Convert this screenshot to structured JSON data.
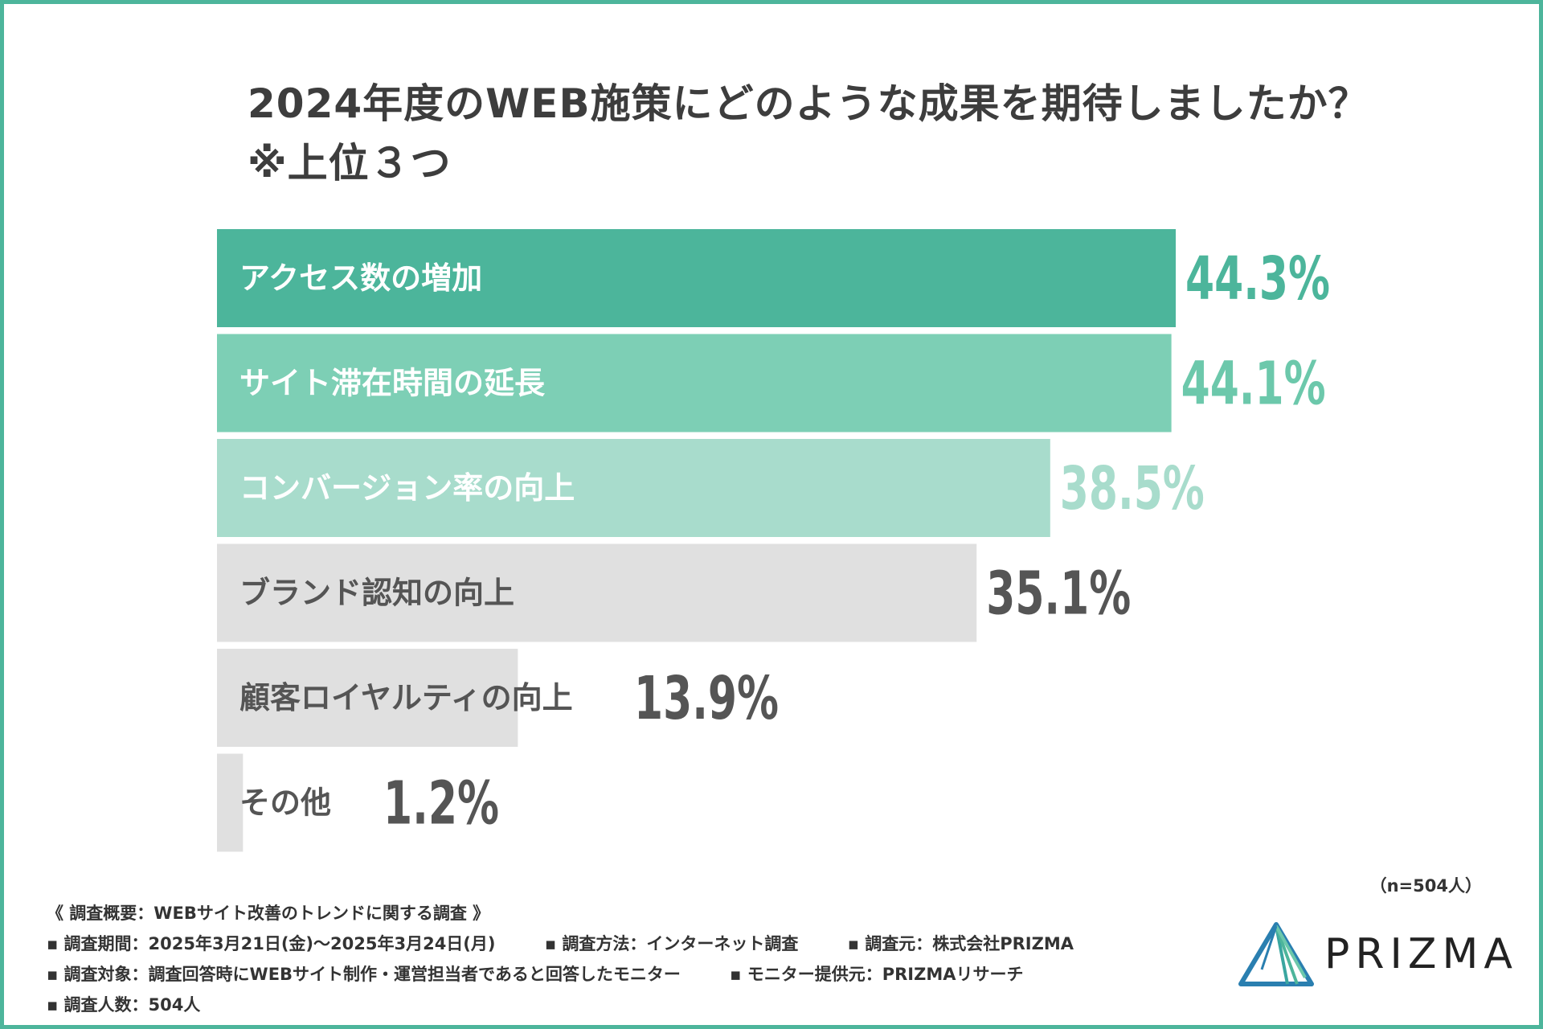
{
  "title": {
    "line1": "2024年度のWEB施策にどのような成果を期待しましたか？",
    "line2": "※上位３つ"
  },
  "sample_size": "（n=504人）",
  "chart_data": {
    "type": "bar",
    "orientation": "horizontal",
    "title": "2024年度のWEB施策にどのような成果を期待しましたか？ ※上位３つ",
    "unit": "%",
    "xlim": [
      0,
      50
    ],
    "grid": false,
    "categories": [
      "アクセス数の増加",
      "サイト滞在時間の延長",
      "コンバージョン率の向上",
      "ブランド認知の向上",
      "顧客ロイヤルティの向上",
      "その他"
    ],
    "values": [
      44.3,
      44.1,
      38.5,
      35.1,
      13.9,
      1.2
    ],
    "value_labels": [
      "44.3%",
      "44.1%",
      "38.5%",
      "35.1%",
      "13.9%",
      "1.2%"
    ],
    "bar_colors": [
      "#4cb59b",
      "#7dcfb5",
      "#a8dccc",
      "#e0e0e0",
      "#e0e0e0",
      "#e0e0e0"
    ],
    "label_colors": [
      "#ffffff",
      "#ffffff",
      "#ffffff",
      "#555555",
      "#555555",
      "#555555"
    ],
    "value_colors": [
      "#4cb59b",
      "#6cc8ab",
      "#a8dccc",
      "#555555",
      "#555555",
      "#555555"
    ]
  },
  "footer": {
    "heading": "《 調査概要：WEBサイト改善のトレンドに関する調査 》",
    "period": "調査期間：2025年3月21日(金)〜2025年3月24日(月)",
    "method": "調査方法：インターネット調査",
    "source": "調査元：株式会社PRIZMA",
    "target": "調査対象：調査回答時にWEBサイト制作・運営担当者であると回答したモニター",
    "provider": "モニター提供元：PRIZMAリサーチ",
    "respondents": "調査人数：504人"
  },
  "logo": {
    "text": "PRIZMA",
    "icon": "prizma-triangle-logo-icon"
  },
  "colors": {
    "border": "#4db59b",
    "accent": "#4cb59b"
  }
}
